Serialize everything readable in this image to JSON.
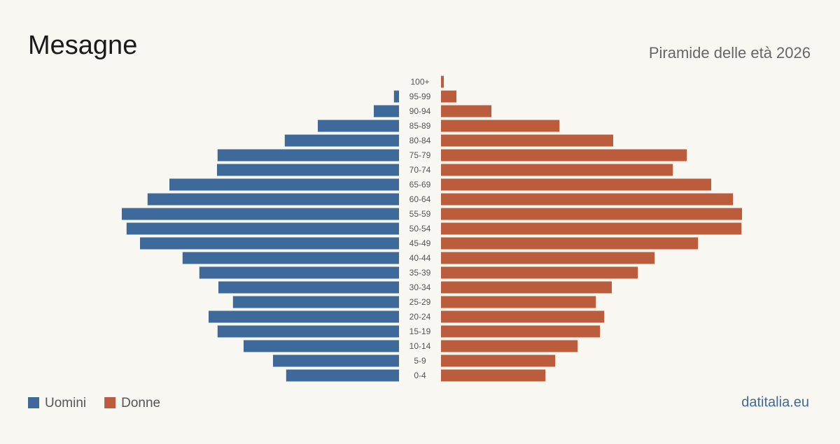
{
  "chart_data": {
    "type": "population-pyramid",
    "title": "Mesagne",
    "subtitle": "Piramide delle età 2026",
    "source": "datitalia.eu",
    "categories": [
      "100+",
      "95-99",
      "90-94",
      "85-89",
      "80-84",
      "75-79",
      "70-74",
      "65-69",
      "60-64",
      "55-59",
      "50-54",
      "45-49",
      "40-44",
      "35-39",
      "30-34",
      "25-29",
      "20-24",
      "15-19",
      "10-14",
      "5-9",
      "0-4"
    ],
    "series": [
      {
        "name": "Uomini",
        "color": "#3d6a9a",
        "side": "left",
        "values": [
          0,
          18,
          90,
          290,
          408,
          648,
          650,
          820,
          898,
          990,
          973,
          925,
          773,
          713,
          645,
          593,
          680,
          648,
          555,
          450,
          403
        ]
      },
      {
        "name": "Donne",
        "color": "#bb5d3c",
        "side": "right",
        "values": [
          10,
          55,
          180,
          423,
          615,
          878,
          828,
          965,
          1043,
          1075,
          1073,
          918,
          763,
          703,
          610,
          553,
          583,
          568,
          488,
          408,
          373
        ]
      }
    ]
  }
}
